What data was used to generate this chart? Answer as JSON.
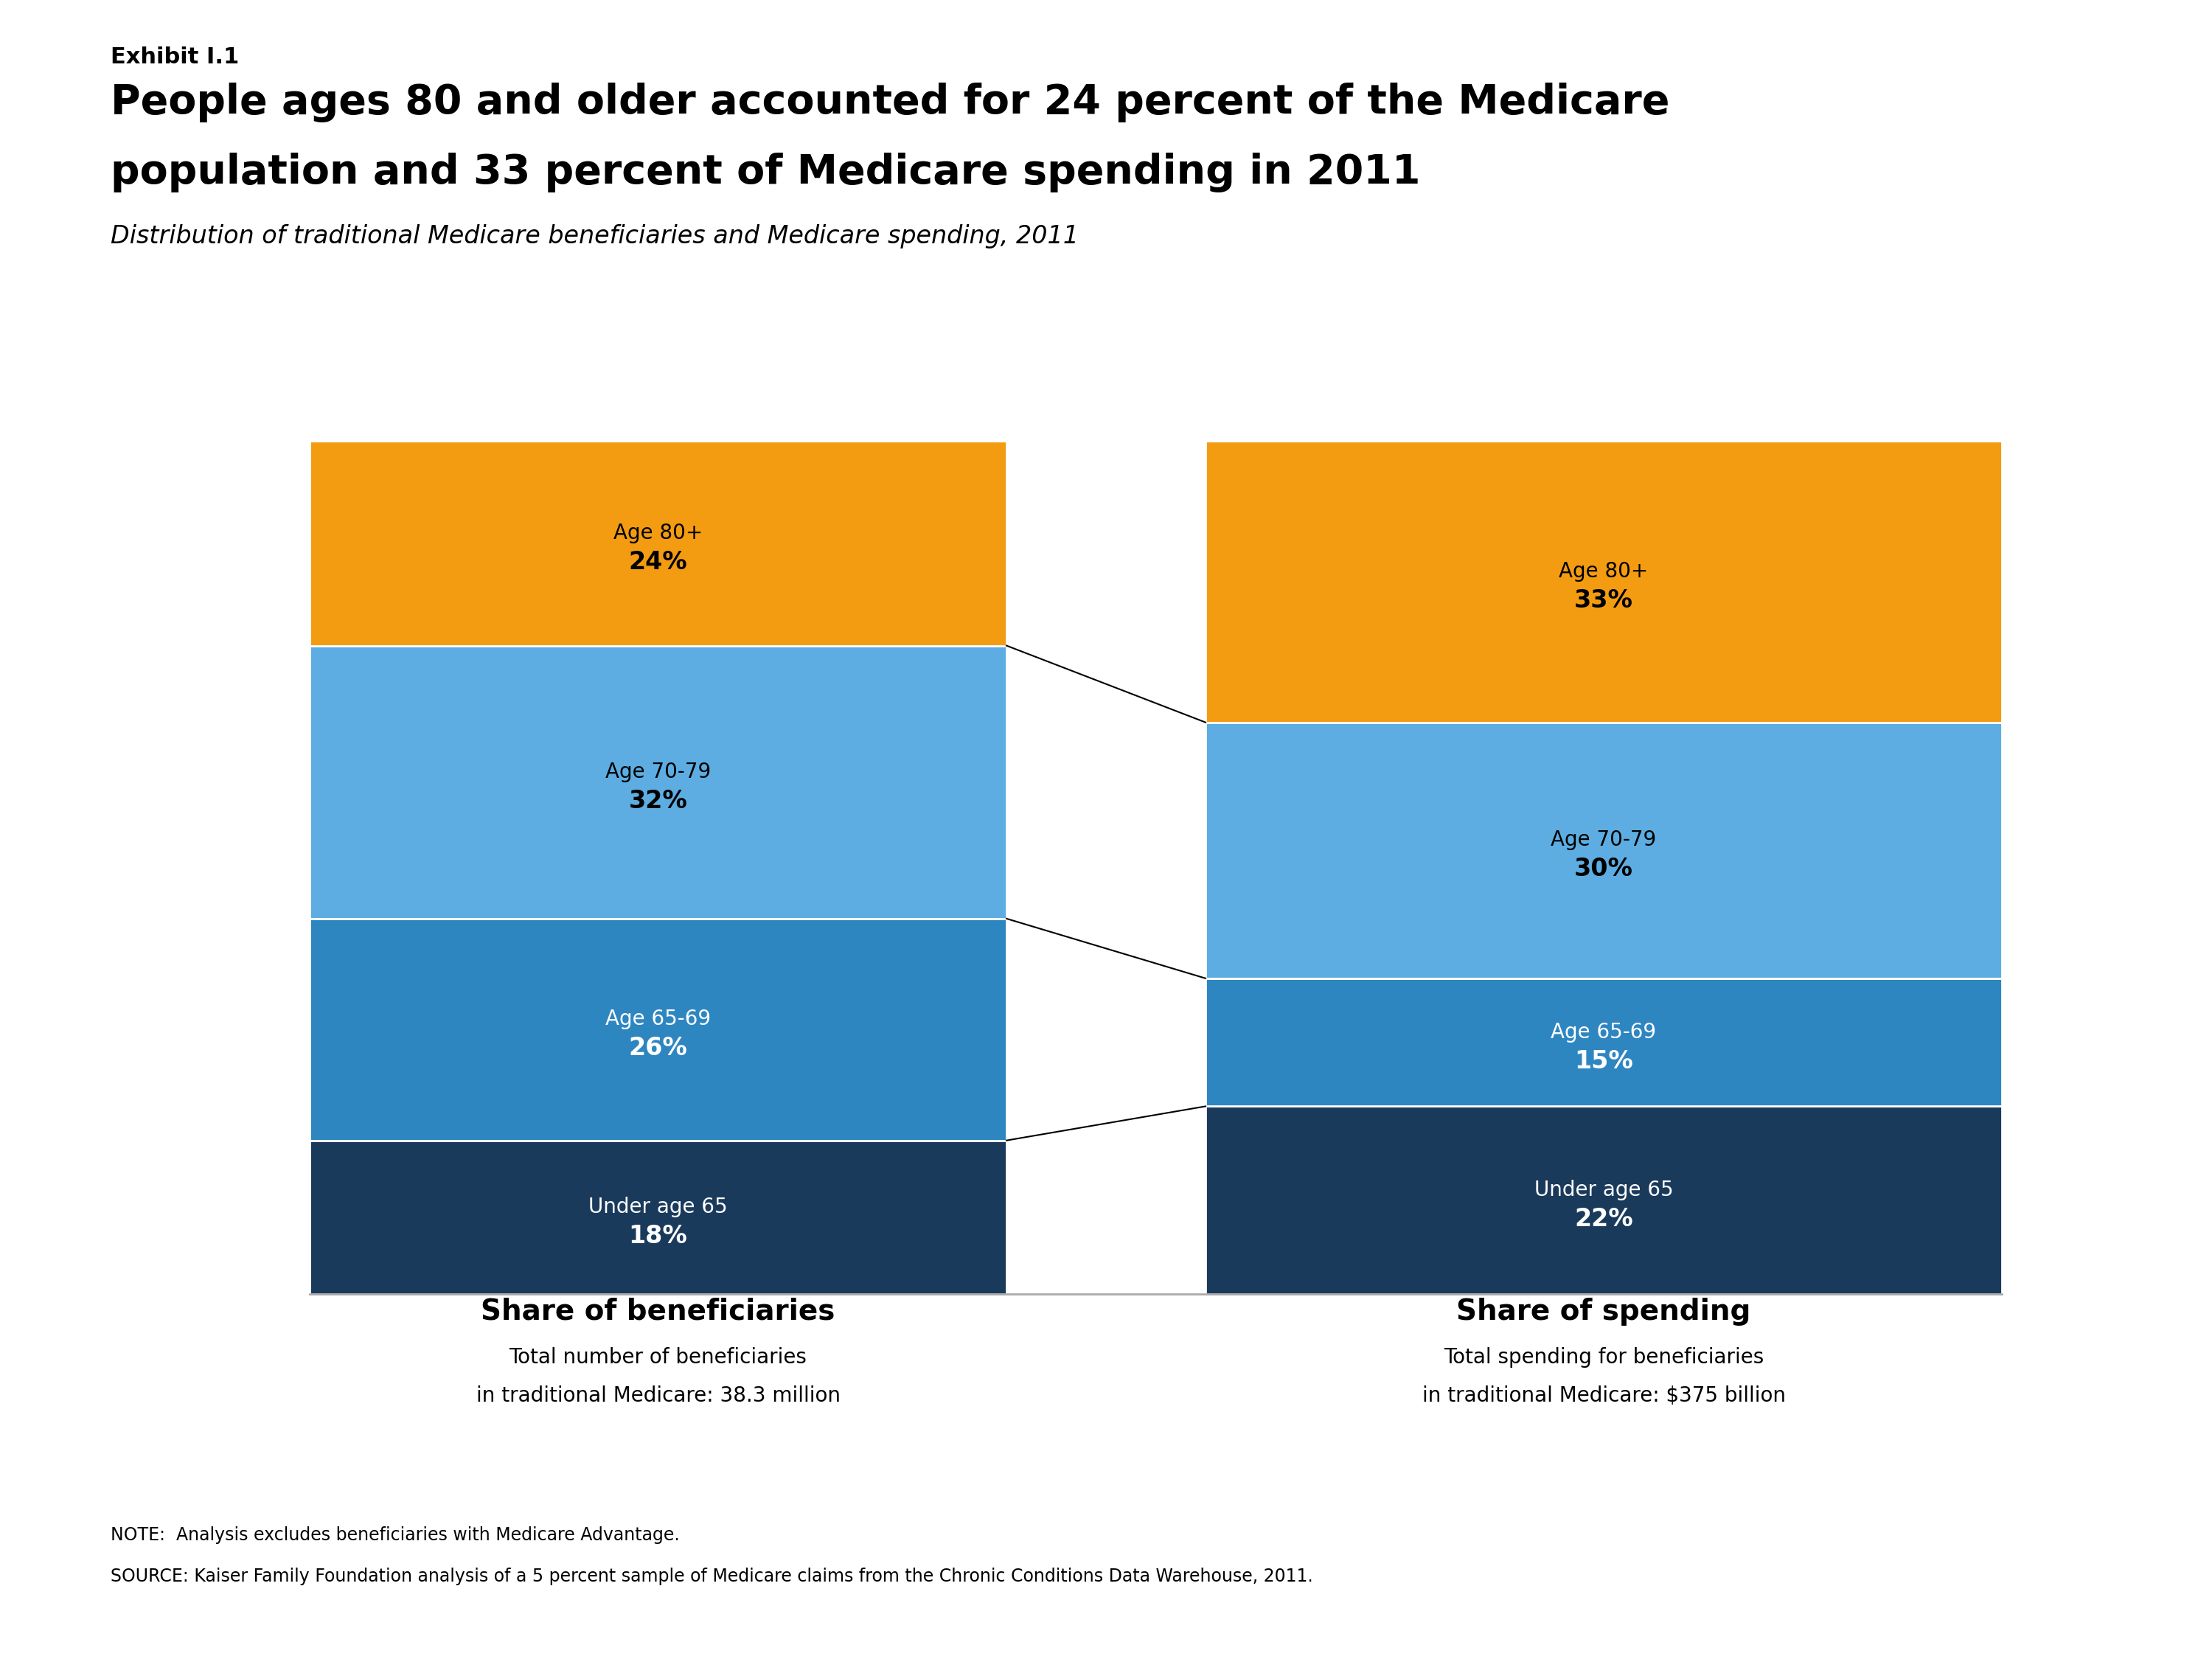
{
  "exhibit_label": "Exhibit I.1",
  "title_line1": "People ages 80 and older accounted for 24 percent of the Medicare",
  "title_line2": "population and 33 percent of Medicare spending in 2011",
  "subtitle": "Distribution of traditional Medicare beneficiaries and Medicare spending, 2011",
  "bar1_label": "Share of beneficiaries",
  "bar1_sublabel1": "Total number of beneficiaries",
  "bar1_sublabel2": "in traditional Medicare: 38.3 million",
  "bar2_label": "Share of spending",
  "bar2_sublabel1": "Total spending for beneficiaries",
  "bar2_sublabel2": "in traditional Medicare: $375 billion",
  "note": "NOTE:  Analysis excludes beneficiaries with Medicare Advantage.",
  "source": "SOURCE: Kaiser Family Foundation analysis of a 5 percent sample of Medicare claims from the Chronic Conditions Data Warehouse, 2011.",
  "categories": [
    "Under age 65",
    "Age 65-69",
    "Age 70-79",
    "Age 80+"
  ],
  "bar1_values": [
    18,
    26,
    32,
    24
  ],
  "bar2_values": [
    22,
    15,
    30,
    33
  ],
  "colors": [
    "#1a3a5c",
    "#2e86c1",
    "#5dade2",
    "#f39c12"
  ],
  "label_colors1": [
    "white",
    "white",
    "black",
    "black"
  ],
  "label_colors2": [
    "white",
    "white",
    "black",
    "black"
  ],
  "bg_color": "#ffffff",
  "title_color": "#000000",
  "kaiser_bg": "#1a3a5c"
}
